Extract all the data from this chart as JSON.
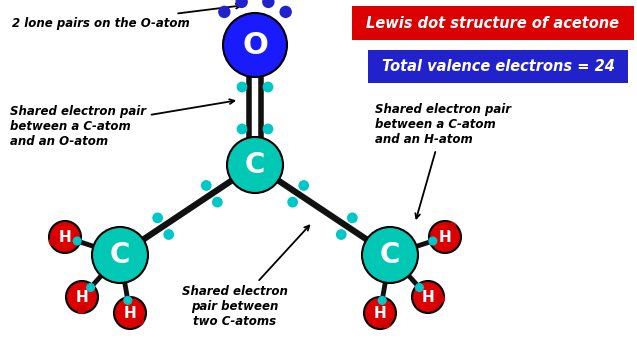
{
  "title": "Lewis dot structure of acetone",
  "subtitle": "Total valence electrons = 24",
  "bg_color": "#ffffff",
  "title_bg": "#dd0000",
  "subtitle_bg": "#2222cc",
  "title_color": "#ffffff",
  "subtitle_color": "#ffffff",
  "atom_C_color": "#00c8b4",
  "atom_O_color": "#1a1aff",
  "atom_H_color": "#dd0000",
  "bond_color": "#111111",
  "lone_pair_teal": "#00c8c8",
  "lone_pair_blue": "#2222cc",
  "lone_pair_red": "#cc0000",
  "annotation_lone_pairs": "2 lone pairs on the O-atom",
  "annotation_shared_CO": "Shared electron pair\nbetween a C-atom\nand an O-atom",
  "annotation_shared_CH": "Shared electron pair\nbetween a C-atom\nand an H-atom",
  "annotation_shared_CC": "Shared electron\npair between\ntwo C-atoms",
  "figw": 6.37,
  "figh": 3.45,
  "dpi": 100
}
